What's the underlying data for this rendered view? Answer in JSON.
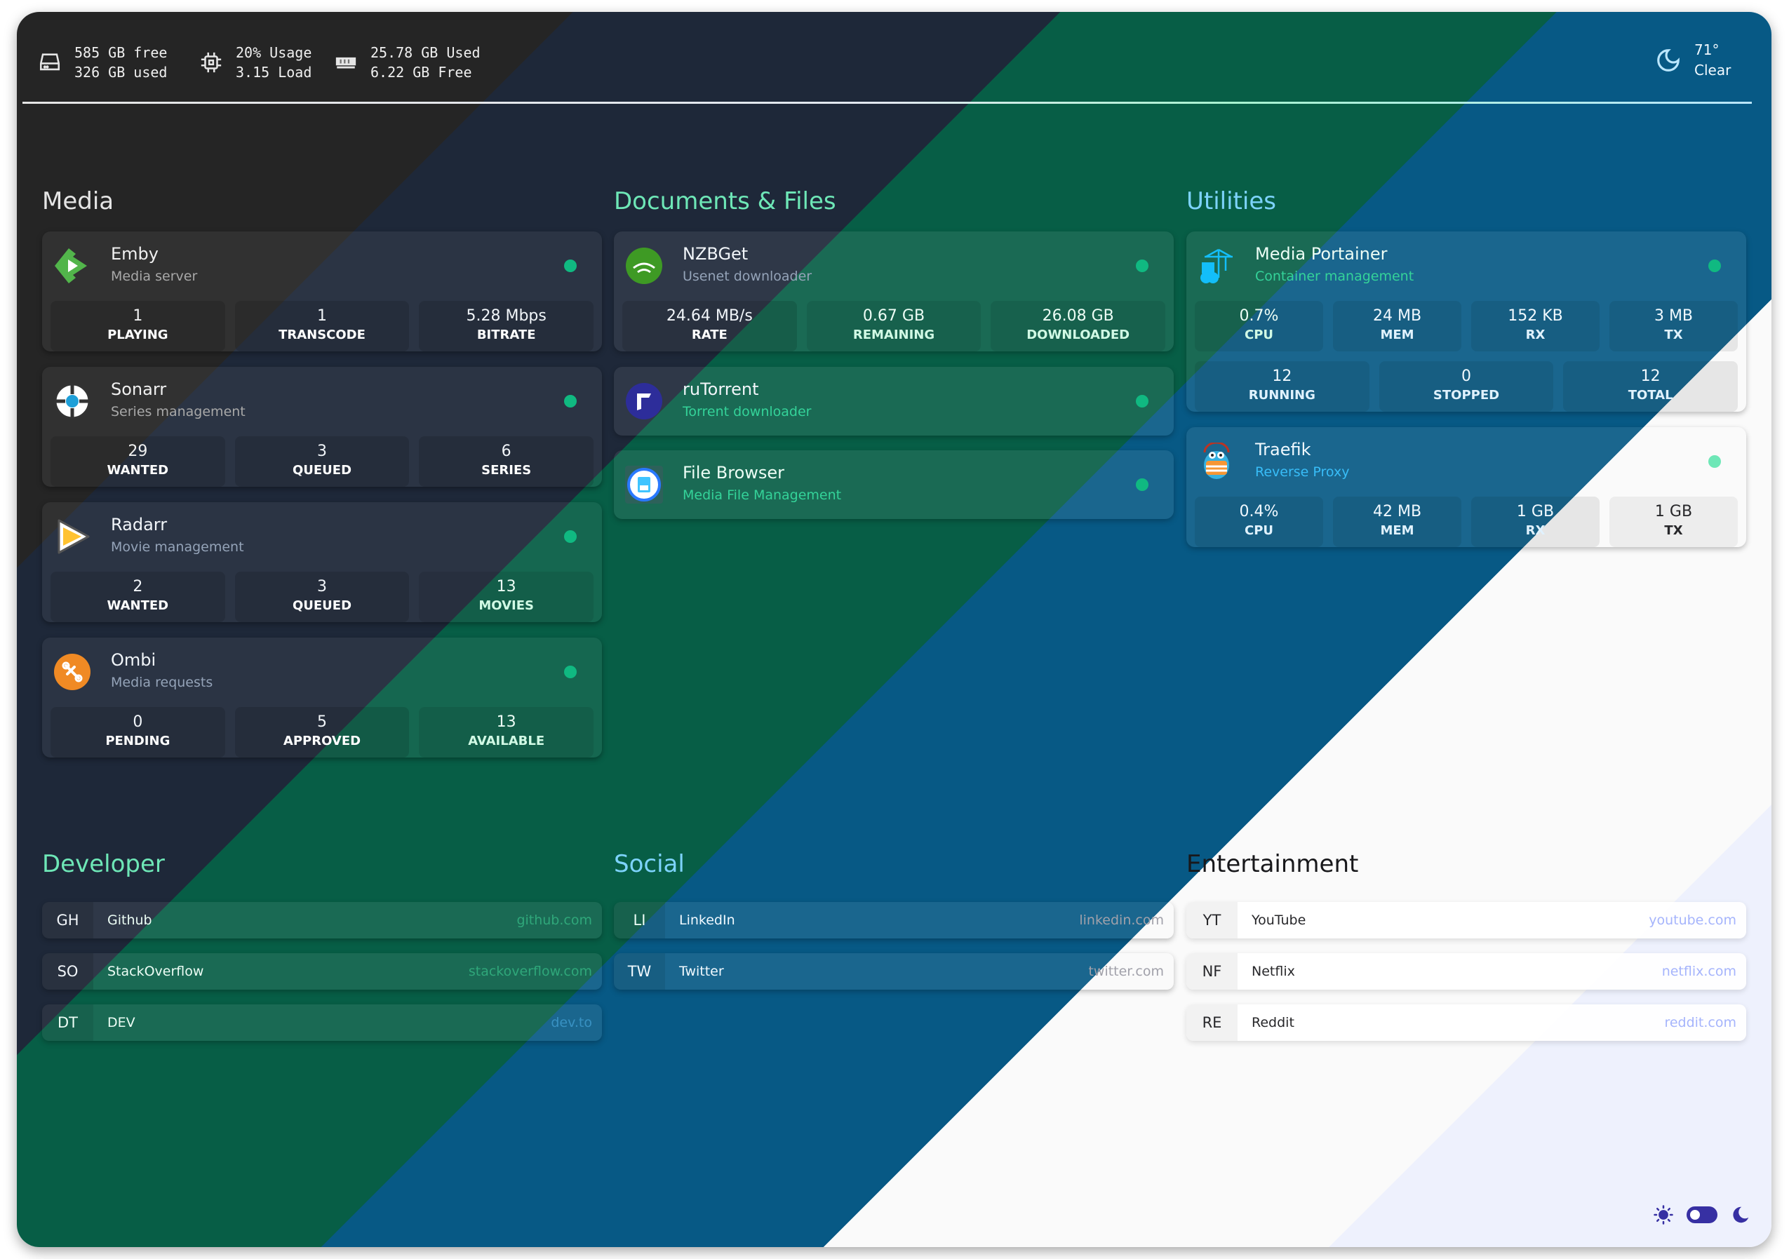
{
  "header": {
    "disk": {
      "icon": "hard-drive-icon",
      "free": "585 GB free",
      "used": "326 GB used"
    },
    "cpu": {
      "icon": "cpu-icon",
      "usage": "20% Usage",
      "load": "3.15 Load"
    },
    "memory": {
      "icon": "memory-icon",
      "used": "25.78 GB Used",
      "free": "6.22 GB Free"
    },
    "weather": {
      "icon": "moon-outline-icon",
      "temp": "71°",
      "condition": "Clear"
    }
  },
  "services": [
    {
      "title": "Media",
      "items": [
        {
          "name": "Emby",
          "subtitle": "Media server",
          "icon": "emby",
          "status": "online",
          "stats": [
            {
              "value": "1",
              "label": "PLAYING"
            },
            {
              "value": "1",
              "label": "TRANSCODE"
            },
            {
              "value": "5.28 Mbps",
              "label": "BITRATE"
            }
          ]
        },
        {
          "name": "Sonarr",
          "subtitle": "Series management",
          "icon": "sonarr",
          "status": "online",
          "stats": [
            {
              "value": "29",
              "label": "WANTED"
            },
            {
              "value": "3",
              "label": "QUEUED"
            },
            {
              "value": "6",
              "label": "SERIES"
            }
          ]
        },
        {
          "name": "Radarr",
          "subtitle": "Movie management",
          "icon": "radarr",
          "status": "online",
          "stats": [
            {
              "value": "2",
              "label": "WANTED"
            },
            {
              "value": "3",
              "label": "QUEUED"
            },
            {
              "value": "13",
              "label": "MOVIES"
            }
          ]
        },
        {
          "name": "Ombi",
          "subtitle": "Media requests",
          "icon": "ombi",
          "status": "online",
          "stats": [
            {
              "value": "0",
              "label": "PENDING"
            },
            {
              "value": "5",
              "label": "APPROVED"
            },
            {
              "value": "13",
              "label": "AVAILABLE"
            }
          ]
        }
      ]
    },
    {
      "title": "Documents & Files",
      "items": [
        {
          "name": "NZBGet",
          "subtitle": "Usenet downloader",
          "icon": "nzbget",
          "logo_text": "nzbget",
          "status": "online",
          "stats": [
            {
              "value": "24.64 MB/s",
              "label": "RATE"
            },
            {
              "value": "0.67 GB",
              "label": "REMAINING"
            },
            {
              "value": "26.08 GB",
              "label": "DOWNLOADED"
            }
          ]
        },
        {
          "name": "ruTorrent",
          "subtitle": "Torrent downloader",
          "icon": "rutorrent",
          "status": "online",
          "stats": []
        },
        {
          "name": "File Browser",
          "subtitle": "Media File Management",
          "icon": "filebrowser",
          "status": "online",
          "stats": []
        }
      ]
    },
    {
      "title": "Utilities",
      "items": [
        {
          "name": "Media Portainer",
          "subtitle": "Container management",
          "icon": "portainer",
          "status": "online",
          "stats": [
            {
              "value": "0.7%",
              "label": "CPU"
            },
            {
              "value": "24 MB",
              "label": "MEM"
            },
            {
              "value": "152 KB",
              "label": "RX"
            },
            {
              "value": "3 MB",
              "label": "TX"
            }
          ],
          "stats2": [
            {
              "value": "12",
              "label": "RUNNING"
            },
            {
              "value": "0",
              "label": "STOPPED"
            },
            {
              "value": "12",
              "label": "TOTAL"
            }
          ]
        },
        {
          "name": "Traefik",
          "subtitle": "Reverse Proxy",
          "icon": "traefik",
          "status": "online",
          "stats": [
            {
              "value": "0.4%",
              "label": "CPU"
            },
            {
              "value": "42 MB",
              "label": "MEM"
            },
            {
              "value": "1 GB",
              "label": "RX"
            },
            {
              "value": "1 GB",
              "label": "TX"
            }
          ]
        }
      ]
    }
  ],
  "bookmarks": [
    {
      "title": "Developer",
      "items": [
        {
          "abbr": "GH",
          "name": "Github",
          "url": "github.com"
        },
        {
          "abbr": "SO",
          "name": "StackOverflow",
          "url": "stackoverflow.com"
        },
        {
          "abbr": "DT",
          "name": "DEV",
          "url": "dev.to"
        }
      ]
    },
    {
      "title": "Social",
      "items": [
        {
          "abbr": "LI",
          "name": "LinkedIn",
          "url": "linkedin.com"
        },
        {
          "abbr": "TW",
          "name": "Twitter",
          "url": "twitter.com"
        }
      ]
    },
    {
      "title": "Entertainment",
      "items": [
        {
          "abbr": "YT",
          "name": "YouTube",
          "url": "youtube.com"
        },
        {
          "abbr": "NF",
          "name": "Netflix",
          "url": "netflix.com"
        },
        {
          "abbr": "RE",
          "name": "Reddit",
          "url": "reddit.com"
        }
      ]
    }
  ],
  "theme_toggle": {
    "state": "dark",
    "accent": "#3730a3",
    "icons": [
      "sun-icon",
      "toggle-switch",
      "moon-icon"
    ]
  },
  "theme_colors": [
    "#252525",
    "#1e2839",
    "#075e46",
    "#075985",
    "#fafafa",
    "#eef1fd"
  ],
  "status_color": "#10b981"
}
